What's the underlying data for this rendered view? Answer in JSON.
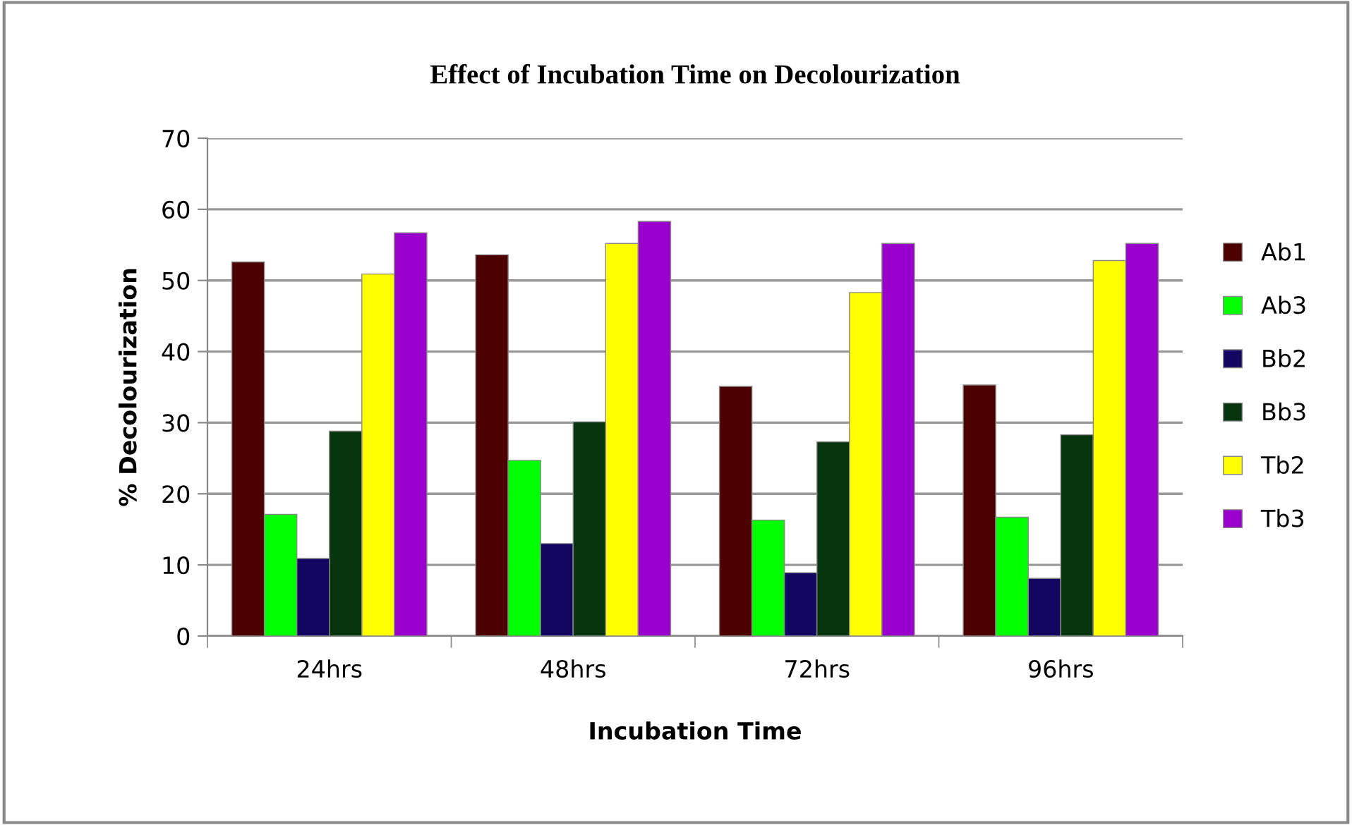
{
  "chart_data": {
    "type": "bar",
    "title": "Effect of Incubation Time on Decolourization",
    "xlabel": "Incubation Time",
    "ylabel": "% Decolourization",
    "categories": [
      "24hrs",
      "48hrs",
      "72hrs",
      "96hrs"
    ],
    "series": [
      {
        "name": "Ab1",
        "color": "#4d0000",
        "values": [
          52.6,
          53.6,
          35.1,
          35.3
        ]
      },
      {
        "name": "Ab3",
        "color": "#00ff00",
        "values": [
          17.1,
          24.7,
          16.3,
          16.7
        ]
      },
      {
        "name": "Bb2",
        "color": "#120660",
        "values": [
          10.9,
          13.0,
          8.9,
          8.1
        ]
      },
      {
        "name": "Bb3",
        "color": "#07350e",
        "values": [
          28.8,
          30.1,
          27.3,
          28.3
        ]
      },
      {
        "name": "Tb2",
        "color": "#ffff00",
        "values": [
          50.9,
          55.2,
          48.3,
          52.8
        ]
      },
      {
        "name": "Tb3",
        "color": "#9900cc",
        "values": [
          56.7,
          58.3,
          55.2,
          55.2
        ]
      }
    ],
    "ylim": [
      0,
      70
    ],
    "yticks": [
      0,
      10,
      20,
      30,
      40,
      50,
      60,
      70
    ],
    "grid": "y",
    "legend": "right"
  }
}
